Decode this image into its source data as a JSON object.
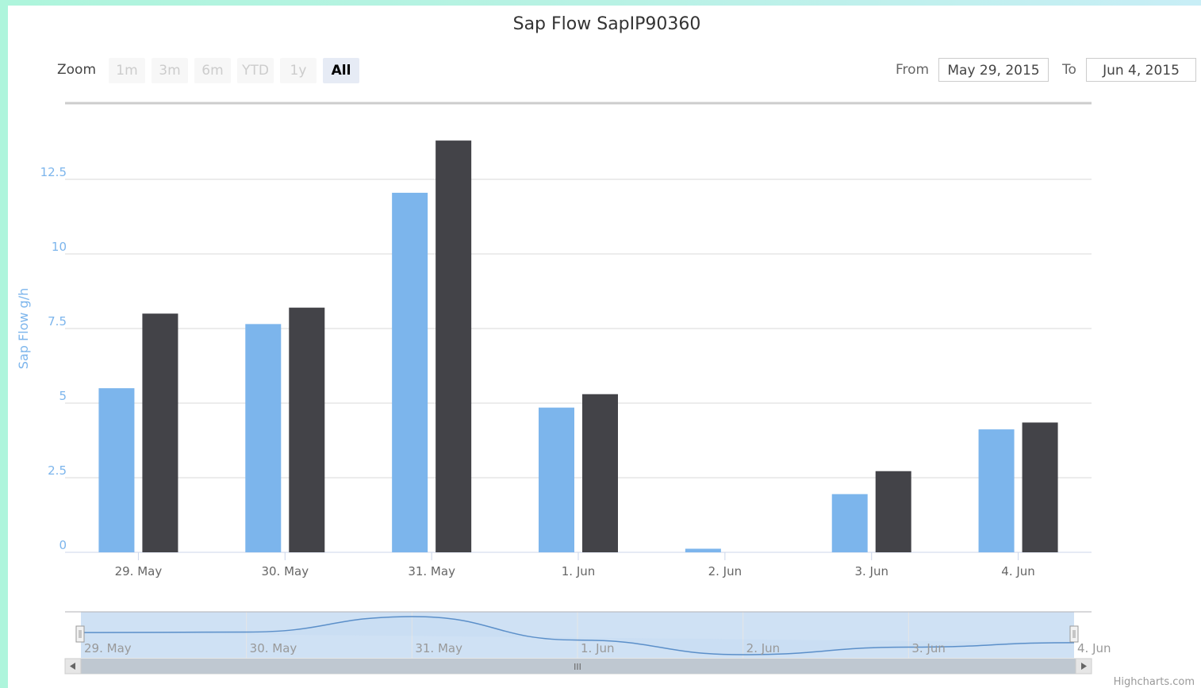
{
  "chart_title": "Sap Flow SapIP90360",
  "range_selector": {
    "zoom_label": "Zoom",
    "buttons": [
      "1m",
      "3m",
      "6m",
      "YTD",
      "1y",
      "All"
    ],
    "active_button": "All",
    "from_label": "From",
    "from_value": "May 29, 2015",
    "to_label": "To",
    "to_value": "Jun 4, 2015"
  },
  "credits": "Highcharts.com",
  "chart_data": {
    "type": "bar",
    "title": "Sap Flow SapIP90360",
    "xlabel": "",
    "ylabel": "Sap Flow g/h",
    "categories": [
      "29. May",
      "30. May",
      "31. May",
      "1. Jun",
      "2. Jun",
      "3. Jun",
      "4. Jun"
    ],
    "y_ticks": [
      "0",
      "2.5",
      "5",
      "7.5",
      "10",
      "12.5"
    ],
    "ylim": [
      0,
      14.5
    ],
    "grid": true,
    "legend": "none",
    "series": [
      {
        "color": "#7cb5ec",
        "values": [
          5.5,
          7.65,
          12.05,
          4.85,
          0.12,
          1.95,
          4.12
        ]
      },
      {
        "color": "#434348",
        "values": [
          8.0,
          8.2,
          13.8,
          5.3,
          0,
          2.72,
          4.35
        ]
      }
    ],
    "navigator": {
      "labels": [
        "29. May",
        "30. May",
        "31. May",
        "1. Jun",
        "2. Jun",
        "3. Jun",
        "4. Jun"
      ],
      "scrollbar_grip": "III"
    }
  }
}
